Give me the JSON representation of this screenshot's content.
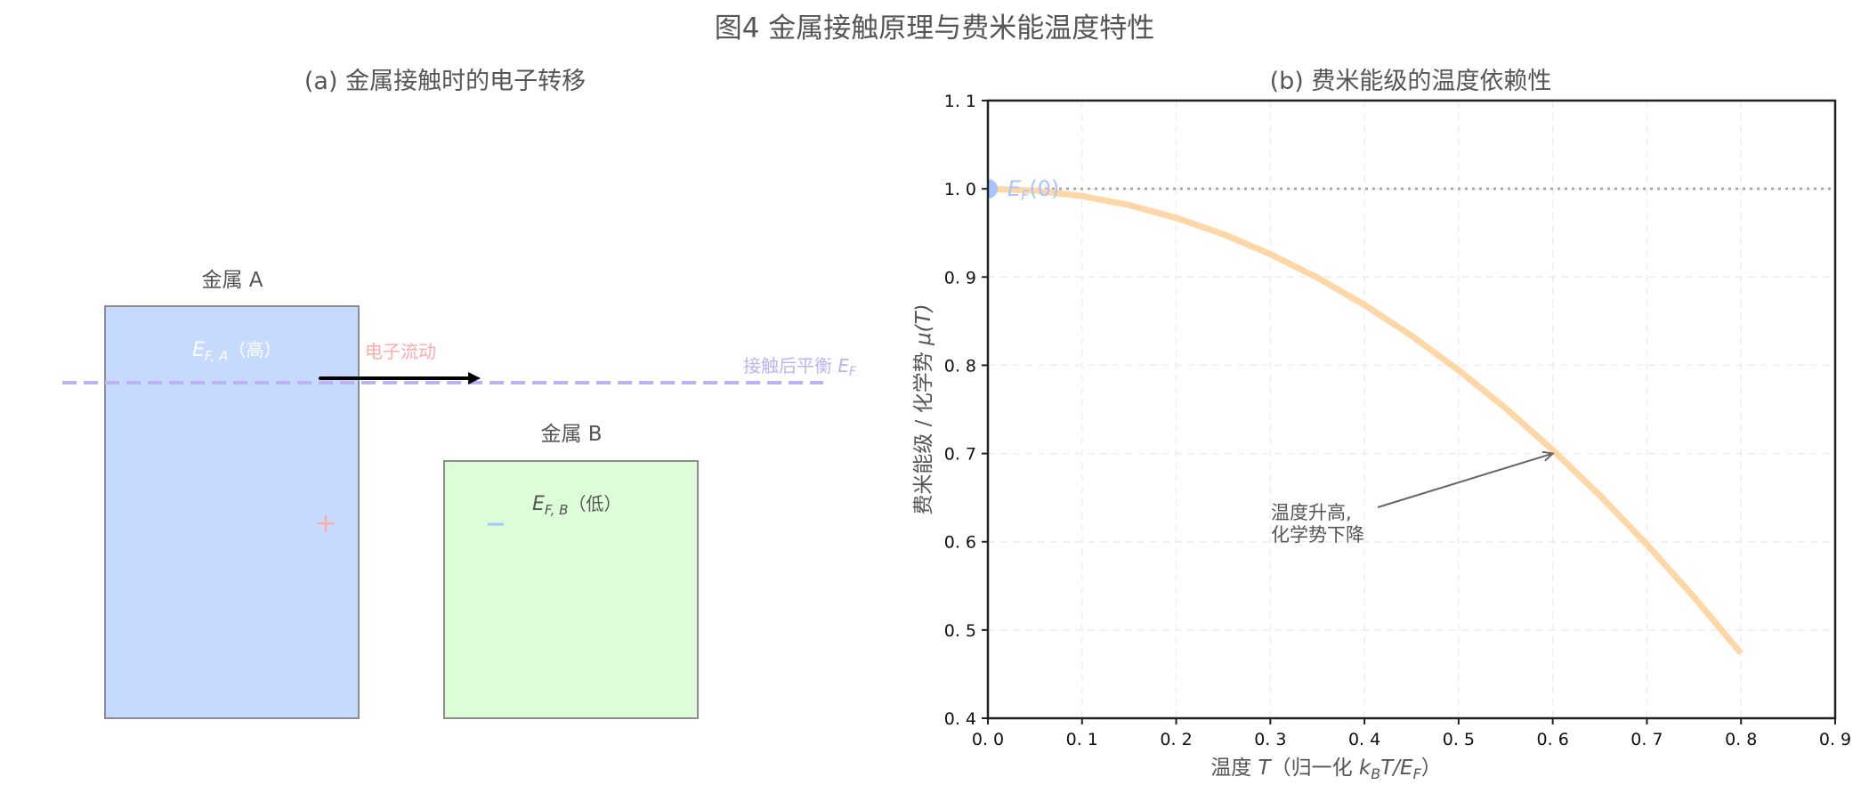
{
  "figure": {
    "title": "图4 金属接触原理与费米能温度特性"
  },
  "panel_a": {
    "title": "(a) 金属接触时的电子转移",
    "metal_a": {
      "label": "金属 A",
      "ef_symbol": "E",
      "ef_sub": "F, A",
      "ef_note": "（高）",
      "fill": "#c6d9ff",
      "stroke": "#8c8c8c",
      "charge": "+"
    },
    "metal_b": {
      "label": "金属 B",
      "ef_symbol": "E",
      "ef_sub": "F, B",
      "ef_note": "（低）",
      "fill": "#ddfdd8",
      "stroke": "#8c8c8c",
      "charge": "−"
    },
    "flow_label": "电子流动",
    "flow_color": "#ffaaaa",
    "equilibrium_label": "接触后平衡 ",
    "equilibrium_symbol": "E",
    "equilibrium_sub": "F",
    "equilibrium_color": "#bcb3f5",
    "plus_color": "#ffaaaa",
    "minus_color": "#a8c4ff"
  },
  "panel_b": {
    "title": "(b) 费米能级的温度依赖性",
    "ref_label_symbol": "E",
    "ref_label_sub": "F",
    "ref_label_rest": "(0)",
    "annotation_line1": "温度升高,",
    "annotation_line2": "化学势下降",
    "xlabel": "温度 T（归一化 k_B T/E_F）",
    "xlabel_parts": {
      "pre": "温度 ",
      "T": "T",
      "mid": "（归一化 ",
      "k": "k",
      "kB": "B",
      "T2": "T/E",
      "F": "F",
      "post": "）"
    },
    "ylabel_pre": "费米能级 / 化学势 ",
    "ylabel_mu": "μ(T)",
    "curve_color": "#ffd6a5",
    "marker_color": "#a8c4ff",
    "ref_line_color": "#aaaaaa"
  },
  "chart_data": {
    "type": "line",
    "title": "(b) 费米能级的温度依赖性",
    "xlabel": "温度 T（归一化 k_B T/E_F）",
    "ylabel": "费米能级 / 化学势 μ(T)",
    "xlim": [
      0.0,
      0.9
    ],
    "ylim": [
      0.4,
      1.1
    ],
    "xticks": [
      "0.0",
      "0.1",
      "0.2",
      "0.3",
      "0.4",
      "0.5",
      "0.6",
      "0.7",
      "0.8",
      "0.9"
    ],
    "yticks": [
      "0.4",
      "0.5",
      "0.6",
      "0.7",
      "0.8",
      "0.9",
      "1.0",
      "1.1"
    ],
    "grid": true,
    "series": [
      {
        "name": "μ(T)",
        "x": [
          0.0,
          0.05,
          0.1,
          0.15,
          0.2,
          0.25,
          0.3,
          0.35,
          0.4,
          0.45,
          0.5,
          0.55,
          0.6,
          0.65,
          0.7,
          0.75,
          0.8
        ],
        "values": [
          1.0,
          0.9979,
          0.9918,
          0.9815,
          0.9671,
          0.9486,
          0.926,
          0.8993,
          0.8684,
          0.8335,
          0.7944,
          0.7512,
          0.7039,
          0.6525,
          0.597,
          0.5374,
          0.4736
        ]
      }
    ],
    "reference_line": {
      "y": 1.0,
      "label": "E_F(0)",
      "style": "dotted"
    },
    "marker": {
      "x": 0.0,
      "y": 1.0
    },
    "annotation": {
      "text": "温度升高,\n化学势下降",
      "xy": [
        0.6,
        0.7
      ],
      "xytext": [
        0.3,
        0.62
      ]
    }
  }
}
